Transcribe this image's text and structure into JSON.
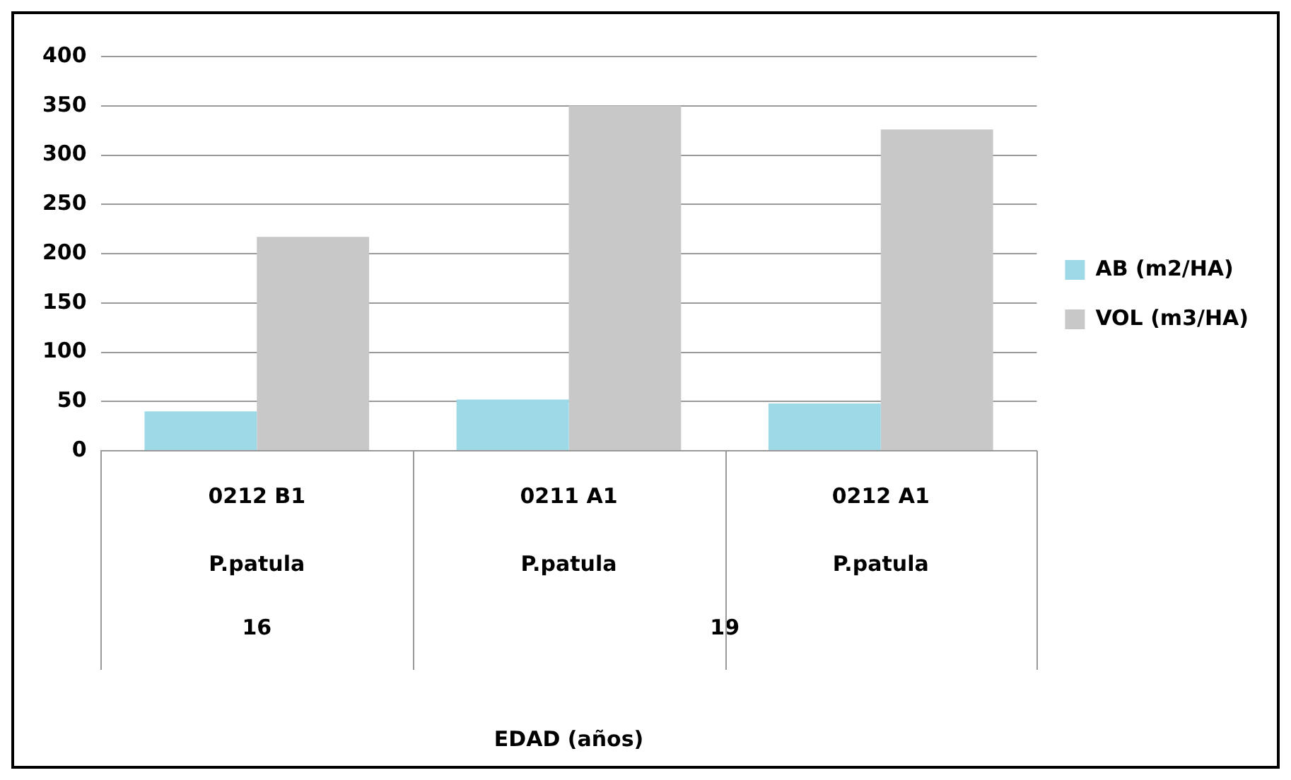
{
  "chart_data": {
    "type": "bar",
    "categories": [
      "0212 B1",
      "0211 A1",
      "0212 A1"
    ],
    "series": [
      {
        "name": "AB (m2/HA)",
        "color": "#9ed9e8",
        "values": [
          40,
          52,
          48
        ]
      },
      {
        "name": "VOL (m3/HA)",
        "color": "#c8c8c8",
        "values": [
          217,
          350,
          326
        ]
      }
    ],
    "annotations": [
      "P.patula",
      "P.patula",
      "P.patula",
      "16",
      "19",
      "EDAD (años)"
    ],
    "ylim": [
      0,
      400
    ],
    "yticks": [
      0,
      50,
      100,
      150,
      200,
      250,
      300,
      350,
      400
    ],
    "grid": "y",
    "legend": "right"
  }
}
